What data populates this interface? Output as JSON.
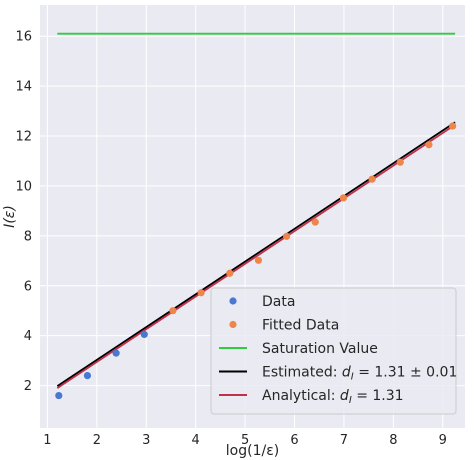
{
  "chart_data": {
    "type": "scatter",
    "xlabel": "log(1/ε)",
    "ylabel": "I(ε)",
    "xlim": [
      0.85,
      9.45
    ],
    "ylim": [
      0.3,
      17.25
    ],
    "x_ticks": [
      "1",
      "2",
      "3",
      "4",
      "5",
      "6",
      "7",
      "8",
      "9"
    ],
    "y_ticks": [
      "2",
      "4",
      "6",
      "8",
      "10",
      "12",
      "14",
      "16"
    ],
    "grid": true,
    "background": "#eaeaf2",
    "legend_position": "lower-right",
    "series": [
      {
        "name": "Data",
        "kind": "scatter",
        "color": "#4878d0",
        "points": [
          [
            1.23,
            1.6
          ],
          [
            1.81,
            2.4
          ],
          [
            2.39,
            3.3
          ],
          [
            2.96,
            4.05
          ]
        ]
      },
      {
        "name": "Fitted Data",
        "kind": "scatter",
        "color": "#ee854a",
        "points": [
          [
            3.54,
            5.0
          ],
          [
            4.11,
            5.72
          ],
          [
            4.69,
            6.5
          ],
          [
            5.27,
            7.02
          ],
          [
            5.84,
            7.98
          ],
          [
            6.42,
            8.55
          ],
          [
            6.99,
            9.52
          ],
          [
            7.57,
            10.27
          ],
          [
            8.14,
            10.95
          ],
          [
            8.72,
            11.65
          ],
          [
            9.2,
            12.4
          ]
        ]
      },
      {
        "name": "Saturation Value",
        "kind": "line",
        "color": "#2ecc40",
        "points": [
          [
            1.2,
            16.1
          ],
          [
            9.25,
            16.1
          ]
        ]
      },
      {
        "name_prefix": "Estimated: ",
        "name_symbol": "d",
        "name_subscript": "I",
        "name_value": " =  1.31 ±  0.01",
        "kind": "line",
        "color": "#000000",
        "points": [
          [
            1.2,
            1.98
          ],
          [
            9.25,
            12.55
          ]
        ]
      },
      {
        "name_prefix": "Analytical: ",
        "name_symbol": "d",
        "name_subscript": "I",
        "name_value": " =  1.31",
        "kind": "line",
        "color": "#c0304a",
        "points": [
          [
            1.2,
            1.9
          ],
          [
            9.25,
            12.45
          ]
        ]
      }
    ]
  }
}
